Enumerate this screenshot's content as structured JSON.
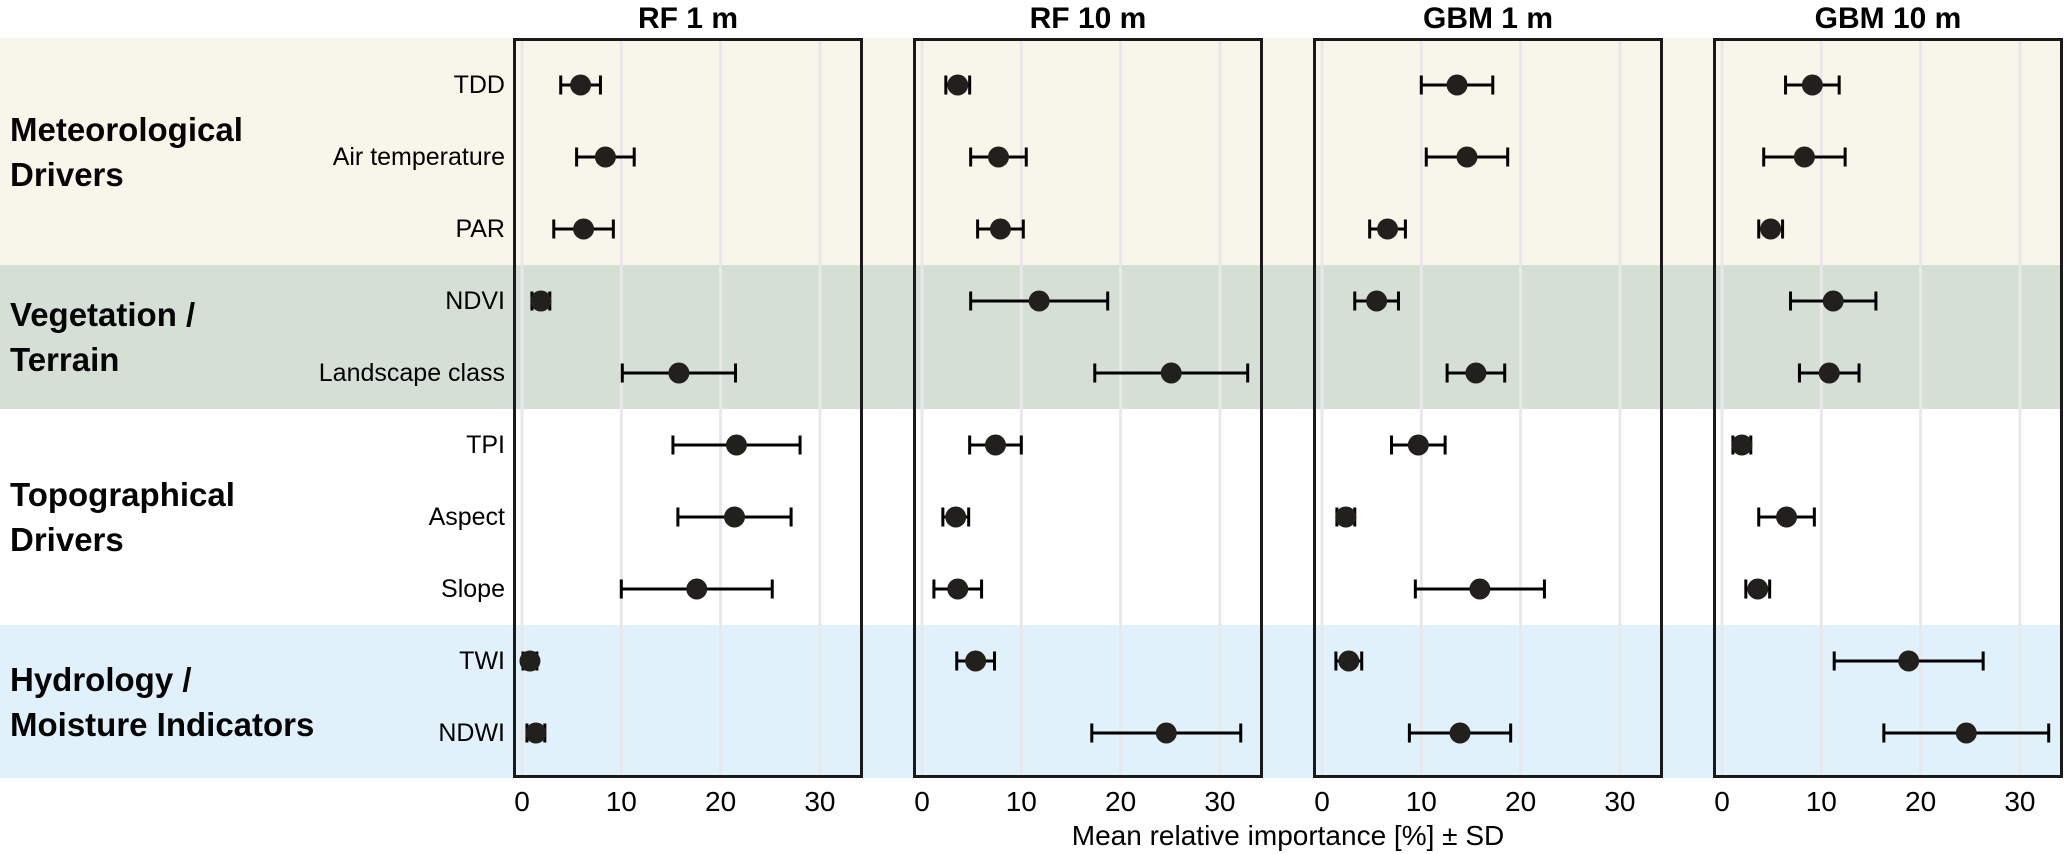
{
  "figure": {
    "axis_label": "Mean relative importance [%] ± SD",
    "colors": {
      "band_meteorological": "#f8f6ea",
      "band_vegetation": "#d5dfd6",
      "band_topographical": "#ffffff",
      "band_hydrology": "#e0f1fb",
      "panel_border": "#1a1a1a",
      "gridline": "#e8e8e8",
      "point": "#22201d",
      "error_bar": "#000000",
      "text": "#000000"
    },
    "groups": [
      {
        "id": "meteorological",
        "label_lines": [
          "Meteorological",
          "Drivers"
        ],
        "row_count": 3
      },
      {
        "id": "vegetation",
        "label_lines": [
          "Vegetation /",
          "Terrain"
        ],
        "row_count": 2
      },
      {
        "id": "topographical",
        "label_lines": [
          "Topographical",
          "Drivers"
        ],
        "row_count": 3
      },
      {
        "id": "hydrology",
        "label_lines": [
          "Hydrology /",
          "Moisture Indicators"
        ],
        "row_count": 2
      }
    ]
  },
  "chart_data": {
    "type": "scatter",
    "subtype": "dot-plot-with-horizontal-error-bars",
    "title": "",
    "xlabel": "Mean relative importance [%] ± SD",
    "ylabel": "",
    "xlim": [
      -1,
      34.3
    ],
    "x_ticks": [
      0,
      10,
      20,
      30
    ],
    "grid": true,
    "categories": [
      "TDD",
      "Air temperature",
      "PAR",
      "NDVI",
      "Landscape class",
      "TPI",
      "Aspect",
      "Slope",
      "TWI",
      "NDWI"
    ],
    "category_groups": [
      "Meteorological Drivers",
      "Meteorological Drivers",
      "Meteorological Drivers",
      "Vegetation / Terrain",
      "Vegetation / Terrain",
      "Topographical Drivers",
      "Topographical Drivers",
      "Topographical Drivers",
      "Hydrology / Moisture Indicators",
      "Hydrology / Moisture Indicators"
    ],
    "series": [
      {
        "name": "RF 1 m",
        "mean": [
          5.9,
          8.4,
          6.2,
          1.9,
          15.8,
          21.6,
          21.4,
          17.6,
          0.8,
          1.4
        ],
        "sd": [
          2.0,
          2.9,
          3.0,
          0.9,
          5.7,
          6.4,
          5.7,
          7.6,
          0.7,
          0.9
        ]
      },
      {
        "name": "RF 10 m",
        "mean": [
          3.6,
          7.7,
          7.9,
          11.8,
          25.1,
          7.4,
          3.4,
          3.6,
          5.4,
          24.6
        ],
        "sd": [
          1.2,
          2.8,
          2.3,
          6.9,
          7.7,
          2.6,
          1.3,
          2.4,
          1.9,
          7.5
        ]
      },
      {
        "name": "GBM 1 m",
        "mean": [
          13.6,
          14.6,
          6.6,
          5.5,
          15.5,
          9.7,
          2.4,
          15.9,
          2.7,
          13.9
        ],
        "sd": [
          3.6,
          4.1,
          1.8,
          2.2,
          2.9,
          2.7,
          0.9,
          6.5,
          1.3,
          5.1
        ]
      },
      {
        "name": "GBM 10 m",
        "mean": [
          9.1,
          8.3,
          4.9,
          11.2,
          10.8,
          2.0,
          6.5,
          3.6,
          18.8,
          24.6
        ],
        "sd": [
          2.7,
          4.1,
          1.2,
          4.3,
          3.0,
          0.9,
          2.8,
          1.2,
          7.5,
          8.3
        ]
      }
    ]
  }
}
